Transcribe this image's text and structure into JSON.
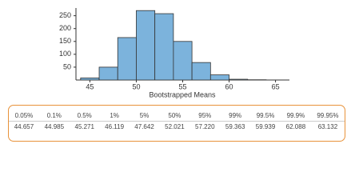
{
  "chart_data": {
    "type": "histogram",
    "x_label": "Bootstrapped Means",
    "bins": [
      44,
      46,
      48,
      50,
      52,
      54,
      56,
      58,
      60,
      62,
      64
    ],
    "values": [
      8,
      50,
      165,
      270,
      258,
      150,
      68,
      20,
      3,
      1
    ],
    "color": "#7cb3dc",
    "xlim": [
      43.5,
      66.5
    ],
    "xticks": [
      45,
      50,
      55,
      60,
      65
    ],
    "ylim": [
      0,
      280
    ],
    "yticks": [
      50,
      100,
      150,
      200,
      250
    ]
  },
  "table": {
    "header": [
      "0.05%",
      "0.1%",
      "0.5%",
      "1%",
      "5%",
      "50%",
      "95%",
      "99%",
      "99.5%",
      "99.9%",
      "99.95%"
    ],
    "rows": [
      [
        "44.657",
        "44.985",
        "45.271",
        "46.119",
        "47.642",
        "52.021",
        "57.220",
        "59.363",
        "59.939",
        "62.088",
        "63.132"
      ]
    ]
  }
}
